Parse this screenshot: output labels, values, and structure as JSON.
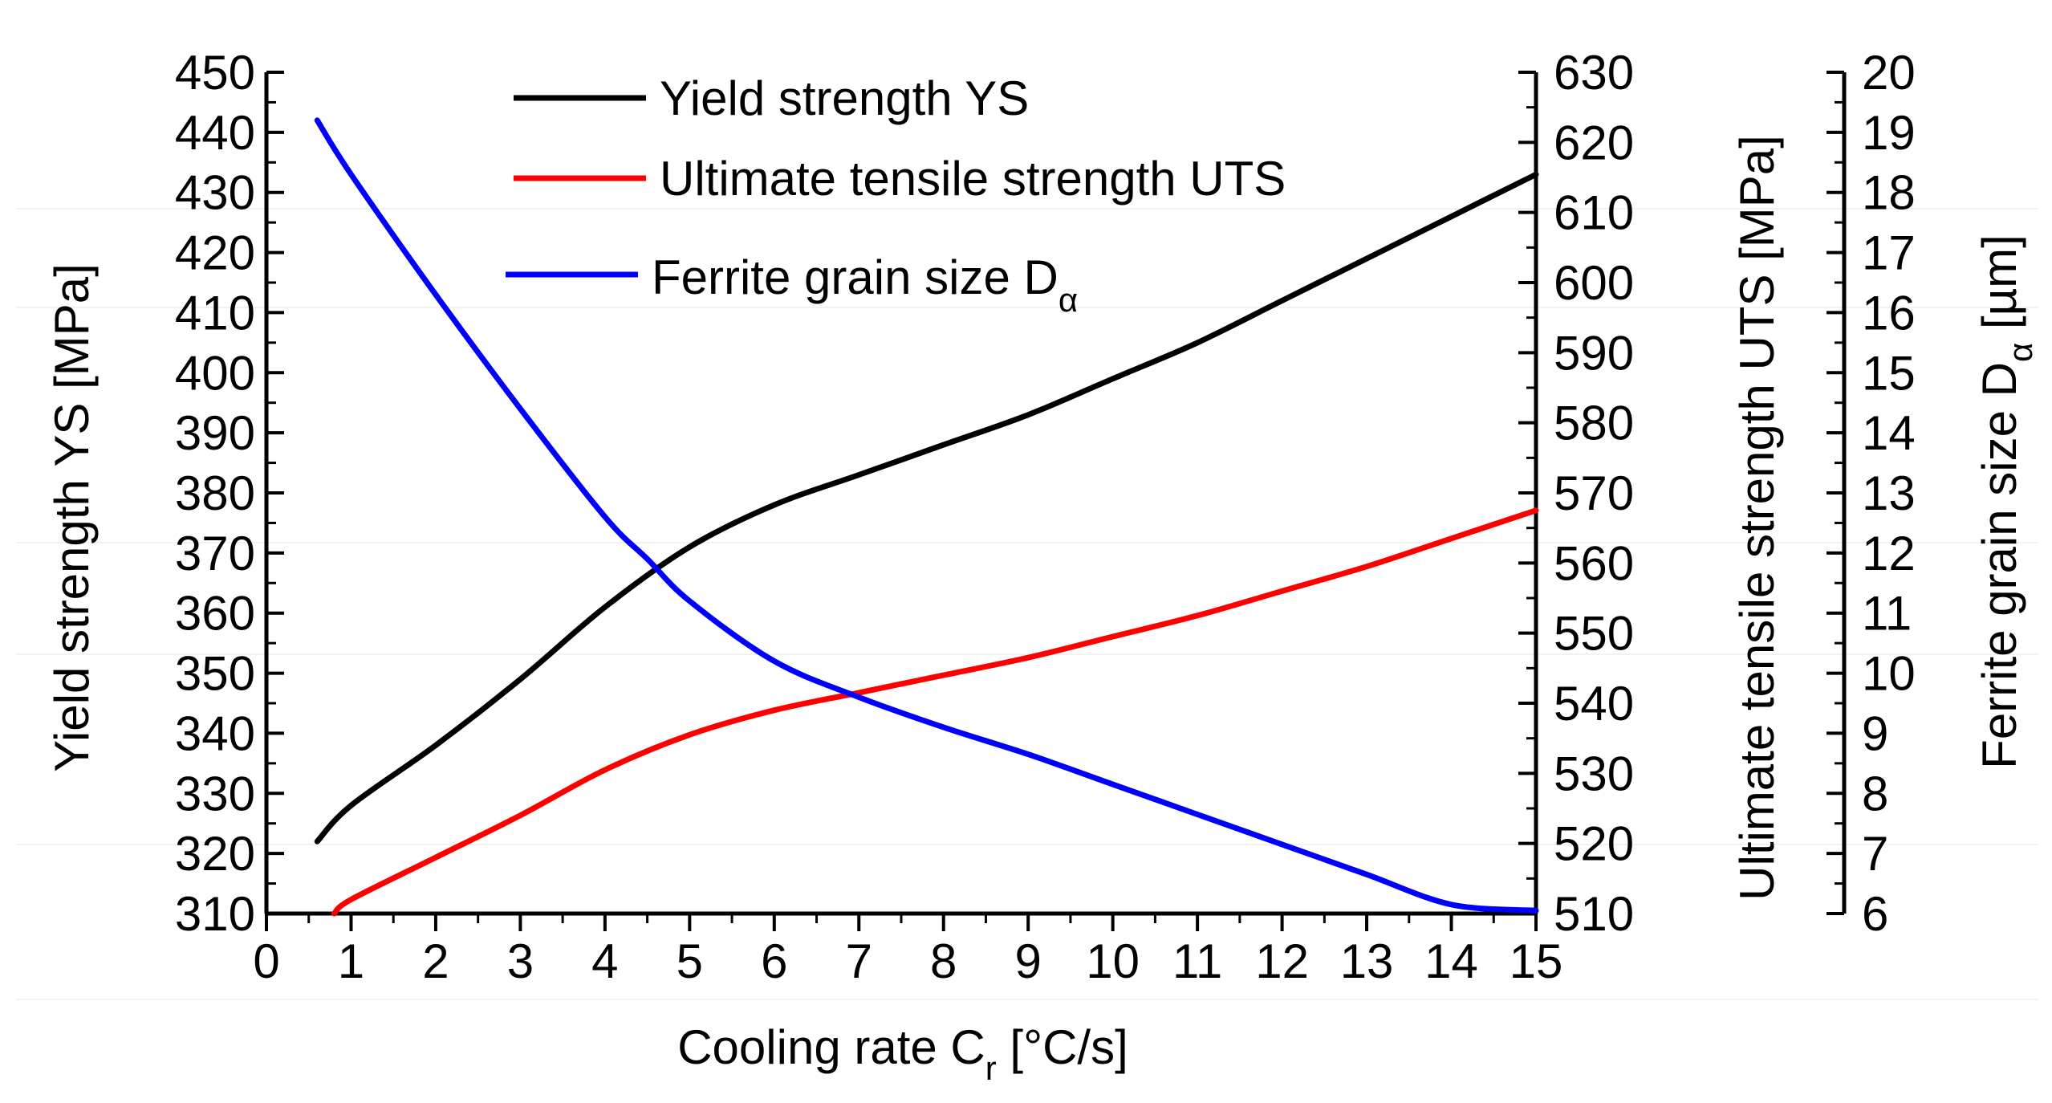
{
  "chart_data": {
    "type": "line",
    "title": "",
    "xlabel": {
      "text": "Cooling rate C",
      "sub": "r",
      "suffix": " [°C/s]"
    },
    "x_axis": {
      "lim": [
        0,
        15
      ],
      "ticks": [
        0,
        1,
        2,
        3,
        4,
        5,
        6,
        7,
        8,
        9,
        10,
        11,
        12,
        13,
        14,
        15
      ],
      "tick_labels": [
        "0",
        "1",
        "2",
        "3",
        "4",
        "5",
        "6",
        "7",
        "8",
        "9",
        "10",
        "11",
        "12",
        "13",
        "14",
        "15"
      ]
    },
    "y_axes": [
      {
        "id": "ys",
        "label": "Yield strength YS [MPa]",
        "lim": [
          310,
          450
        ],
        "ticks": [
          310,
          320,
          330,
          340,
          350,
          360,
          370,
          380,
          390,
          400,
          410,
          420,
          430,
          440,
          450
        ],
        "tick_labels": [
          "310",
          "320",
          "330",
          "340",
          "350",
          "360",
          "370",
          "380",
          "390",
          "400",
          "410",
          "420",
          "430",
          "440",
          "450"
        ]
      },
      {
        "id": "uts",
        "label": "Ultimate tensile strength UTS [MPa]",
        "lim": [
          510,
          630
        ],
        "ticks": [
          510,
          520,
          530,
          540,
          550,
          560,
          570,
          580,
          590,
          600,
          610,
          620,
          630
        ],
        "tick_labels": [
          "510",
          "520",
          "530",
          "540",
          "550",
          "560",
          "570",
          "580",
          "590",
          "600",
          "610",
          "620",
          "630"
        ]
      },
      {
        "id": "da",
        "label": {
          "text": "Ferrite grain size D",
          "sub": "α",
          "suffix": " [µm]"
        },
        "lim": [
          6,
          20
        ],
        "ticks": [
          6,
          7,
          8,
          9,
          10,
          11,
          12,
          13,
          14,
          15,
          16,
          17,
          18,
          19,
          20
        ],
        "tick_labels": [
          "6",
          "7",
          "8",
          "9",
          "10",
          "11",
          "12",
          "13",
          "14",
          "15",
          "16",
          "17",
          "18",
          "19",
          "20"
        ]
      }
    ],
    "series": [
      {
        "name": "Yield strength YS",
        "axis": "ys",
        "color": "#000000",
        "x": [
          0.6,
          1,
          2,
          3,
          4,
          5,
          6,
          7,
          8,
          9,
          10,
          11,
          12,
          13,
          14,
          15
        ],
        "y": [
          322,
          328,
          338,
          349,
          361,
          371,
          378,
          383,
          388,
          393,
          399,
          405,
          412,
          419,
          426,
          433
        ]
      },
      {
        "name": "Ultimate tensile strength UTS",
        "axis": "uts",
        "color": "#ff0000",
        "x": [
          0.8,
          1,
          2,
          3,
          4,
          5,
          6,
          7,
          8,
          9,
          10,
          11,
          12,
          13,
          14,
          15
        ],
        "y": [
          510,
          512,
          518,
          524,
          530.5,
          535.5,
          539,
          541.5,
          544,
          546.5,
          549.5,
          552.5,
          556,
          559.5,
          563.5,
          567.5
        ]
      },
      {
        "name": "Ferrite grain size D",
        "name_sub": "α",
        "axis": "da",
        "color": "#0000ff",
        "x": [
          0.6,
          1,
          2,
          3,
          4,
          4.5,
          5,
          6,
          7,
          8,
          9,
          10,
          11,
          12,
          13,
          14,
          15
        ],
        "y": [
          19.2,
          18.3,
          16.3,
          14.4,
          12.6,
          11.9,
          11.2,
          10.2,
          9.6,
          9.1,
          8.65,
          8.15,
          7.65,
          7.15,
          6.65,
          6.15,
          6.05
        ]
      }
    ],
    "legend_position": "top-center",
    "grid": false
  }
}
